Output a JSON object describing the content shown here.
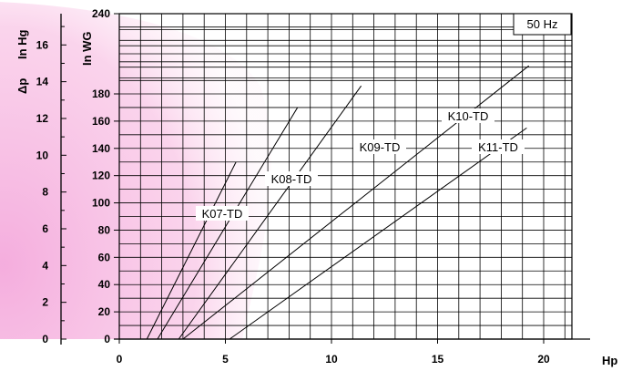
{
  "chart_data": {
    "type": "line",
    "title": "",
    "xlabel": "Hp",
    "ylabel": "In WG",
    "y2label": "In Hg",
    "delta_symbol": "Δp",
    "annotation": "50 Hz",
    "xlim": [
      0,
      22
    ],
    "ylim": [
      0,
      240
    ],
    "y2lim": [
      0,
      17.7
    ],
    "x_ticks": [
      "0",
      "5",
      "10",
      "15",
      "20"
    ],
    "x_tick_values": [
      0,
      5,
      10,
      15,
      20
    ],
    "y_ticks": [
      "0",
      "20",
      "40",
      "60",
      "80",
      "100",
      "120",
      "140",
      "160",
      "180",
      "240"
    ],
    "y_tick_values": [
      0,
      20,
      40,
      60,
      80,
      100,
      120,
      140,
      160,
      180,
      240
    ],
    "y2_ticks": [
      "0",
      "2",
      "4",
      "6",
      "8",
      "10",
      "12",
      "14",
      "16"
    ],
    "y2_tick_values": [
      0,
      2,
      4,
      6,
      8,
      10,
      12,
      14,
      16
    ],
    "grid": true,
    "shading_color": "#f9c6e6",
    "series": [
      {
        "name": "K07-TD",
        "x": [
          1.3,
          5.5
        ],
        "y": [
          0,
          130
        ]
      },
      {
        "name": "K08-TD",
        "x": [
          1.8,
          8.4
        ],
        "y": [
          0,
          170
        ]
      },
      {
        "name": "K09-TD",
        "x": [
          2.8,
          11.4
        ],
        "y": [
          0,
          186
        ]
      },
      {
        "name": "K10-TD",
        "x": [
          3.0,
          19.3
        ],
        "y": [
          0,
          201
        ]
      },
      {
        "name": "K11-TD",
        "x": [
          5.2,
          19.2
        ],
        "y": [
          0,
          155
        ]
      }
    ]
  }
}
